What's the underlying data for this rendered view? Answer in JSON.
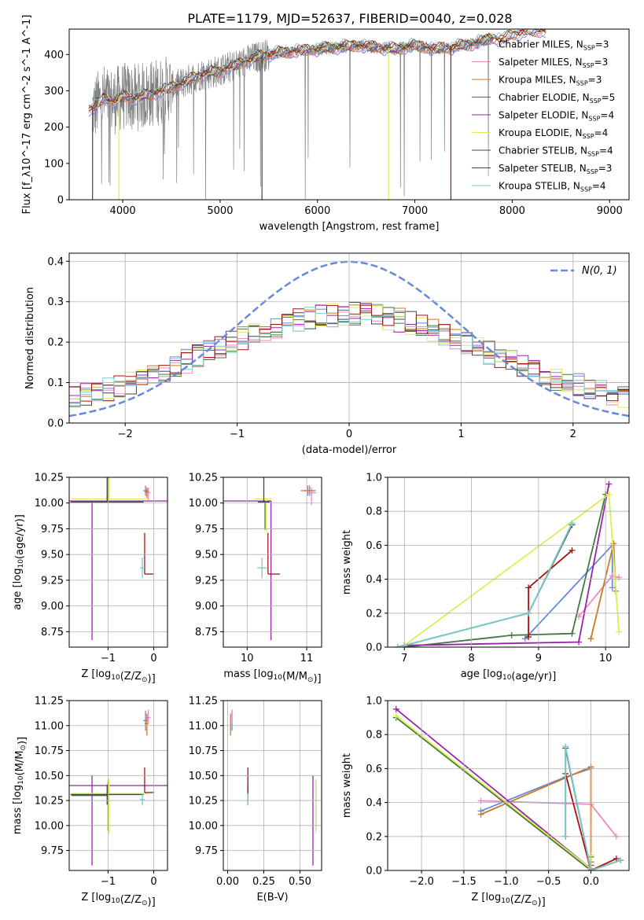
{
  "figure_title": "PLATE=1179, MJD=52637, FIBERID=0040, z=0.028",
  "colors": {
    "series": [
      "#6688dd",
      "#ee88cc",
      "#cc7722",
      "#447744",
      "#9922aa",
      "#ddee55",
      "#444444",
      "#aa1111",
      "#77cccc"
    ],
    "data_spectrum": "#808080",
    "normal_curve": "#6688dd",
    "grid": "#b0b0b0"
  },
  "chart_data": [
    {
      "id": "spectrum",
      "type": "line",
      "xlabel": "wavelength [Angstrom, rest frame]",
      "ylabel": "Flux [f_λ10^-17 erg cm^-2 s^-1 A^-1]",
      "xlim": [
        3450,
        9200
      ],
      "ylim": [
        0,
        470
      ],
      "xticks": [
        4000,
        5000,
        6000,
        7000,
        8000,
        9000
      ],
      "yticks": [
        0,
        100,
        200,
        300,
        400
      ],
      "grid": false,
      "legend_position": "top-right",
      "legend": [
        {
          "main": "Chabrier MILES, N",
          "sub": "SSP",
          "tail": "=3"
        },
        {
          "main": "Salpeter MILES, N",
          "sub": "SSP",
          "tail": "=3"
        },
        {
          "main": "Kroupa MILES, N",
          "sub": "SSP",
          "tail": "=3"
        },
        {
          "main": "Chabrier ELODIE, N",
          "sub": "SSP",
          "tail": "=5"
        },
        {
          "main": "Salpeter ELODIE, N",
          "sub": "SSP",
          "tail": "=4"
        },
        {
          "main": "Kroupa ELODIE, N",
          "sub": "SSP",
          "tail": "=4"
        },
        {
          "main": "Chabrier STELIB, N",
          "sub": "SSP",
          "tail": "=4"
        },
        {
          "main": "Salpeter STELIB, N",
          "sub": "SSP",
          "tail": "=3"
        },
        {
          "main": "Kroupa STELIB, N",
          "sub": "SSP",
          "tail": "=4"
        }
      ],
      "continuum_points": [
        [
          3700,
          250
        ],
        [
          3800,
          280
        ],
        [
          3900,
          270
        ],
        [
          4000,
          285
        ],
        [
          4100,
          280
        ],
        [
          4200,
          285
        ],
        [
          4400,
          300
        ],
        [
          4600,
          320
        ],
        [
          4800,
          345
        ],
        [
          5000,
          355
        ],
        [
          5200,
          375
        ],
        [
          5400,
          395
        ],
        [
          5600,
          405
        ],
        [
          5800,
          410
        ],
        [
          6000,
          415
        ],
        [
          6200,
          420
        ],
        [
          6400,
          425
        ],
        [
          6600,
          420
        ],
        [
          6800,
          415
        ],
        [
          7000,
          425
        ],
        [
          7200,
          415
        ],
        [
          7400,
          420
        ],
        [
          7600,
          430
        ],
        [
          7800,
          445
        ],
        [
          7900,
          440
        ],
        [
          8000,
          455
        ],
        [
          8200,
          465
        ]
      ],
      "drop_lines": [
        {
          "series": 6,
          "x": 3690
        },
        {
          "series": 5,
          "x": 3960
        },
        {
          "series": 6,
          "x": 5430
        },
        {
          "series": 5,
          "x": 6730
        },
        {
          "series": 7,
          "x": 7370
        }
      ]
    },
    {
      "id": "residuals",
      "type": "histogram",
      "xlabel": "(data-model)/error",
      "ylabel": "Normed distribution",
      "xlim": [
        -2.5,
        2.5
      ],
      "ylim": [
        0,
        0.42
      ],
      "xticks": [
        -2,
        -1,
        0,
        1,
        2
      ],
      "yticks": [
        0.0,
        0.1,
        0.2,
        0.3,
        0.4
      ],
      "grid": true,
      "bin_width": 0.1,
      "curve": {
        "type": "normal",
        "mean": 0,
        "sigma": 1,
        "label": "N(0, 1)"
      },
      "legend_position": "top-right"
    },
    {
      "id": "age_vs_Z",
      "type": "errorbar",
      "xlabel": "Z [log10(Z/Z⊙)]",
      "ylabel": "age  [log10(age/yr)]",
      "xlim": [
        -1.85,
        0.3
      ],
      "ylim": [
        8.6,
        10.25
      ],
      "xticks": [
        -1,
        0
      ],
      "yticks": [
        8.75,
        9.0,
        9.25,
        9.5,
        9.75,
        10.0,
        10.25
      ],
      "grid": true,
      "points": [
        {
          "s": 0,
          "x": -0.18,
          "y": 10.12,
          "xe": [
            0.05,
            0.05
          ],
          "ye": [
            0.05,
            0.05
          ]
        },
        {
          "s": 1,
          "x": -0.12,
          "y": 10.1,
          "xe": [
            0.06,
            0.05
          ],
          "ye": [
            0.07,
            0.05
          ]
        },
        {
          "s": 2,
          "x": -0.15,
          "y": 10.11,
          "xe": [
            0.05,
            0.04
          ],
          "ye": [
            0.06,
            0.04
          ]
        },
        {
          "s": 3,
          "x": -1.0,
          "y": 10.02,
          "xe": [
            0.8,
            0.0
          ],
          "ye": [
            0.0,
            0.28
          ]
        },
        {
          "s": 4,
          "x": -1.35,
          "y": 10.02,
          "xe": [
            0.5,
            1.65
          ],
          "ye": [
            1.35,
            0.0
          ]
        },
        {
          "s": 5,
          "x": -0.98,
          "y": 10.04,
          "xe": [
            0.82,
            0.85
          ],
          "ye": [
            0.0,
            0.32
          ]
        },
        {
          "s": 6,
          "x": -1.02,
          "y": 10.01,
          "xe": [
            0.8,
            0.8
          ],
          "ye": [
            0.0,
            0.25
          ]
        },
        {
          "s": 7,
          "x": -0.2,
          "y": 9.31,
          "xe": [
            0.0,
            0.2
          ],
          "ye": [
            0.0,
            0.4
          ]
        },
        {
          "s": 8,
          "x": -0.25,
          "y": 9.37,
          "xe": [
            0.05,
            0.05
          ],
          "ye": [
            0.1,
            0.1
          ]
        }
      ]
    },
    {
      "id": "age_vs_mass",
      "type": "errorbar",
      "xlabel": "mass [log10(M/M⊙)]",
      "ylabel": "",
      "xlim": [
        9.6,
        11.25
      ],
      "ylim": [
        8.6,
        10.25
      ],
      "xticks": [
        10,
        11
      ],
      "yticks": [
        8.75,
        9.0,
        9.25,
        9.5,
        9.75,
        10.0,
        10.25
      ],
      "grid": true,
      "points": [
        {
          "s": 0,
          "x": 11.05,
          "y": 10.12,
          "xe": [
            0.1,
            0.1
          ],
          "ye": [
            0.05,
            0.05
          ]
        },
        {
          "s": 1,
          "x": 11.08,
          "y": 10.1,
          "xe": [
            0.05,
            0.08
          ],
          "ye": [
            0.12,
            0.05
          ]
        },
        {
          "s": 2,
          "x": 11.02,
          "y": 10.12,
          "xe": [
            0.12,
            0.1
          ],
          "ye": [
            0.05,
            0.05
          ]
        },
        {
          "s": 3,
          "x": 10.3,
          "y": 10.02,
          "xe": [
            0.0,
            0.1
          ],
          "ye": [
            0.28,
            0.0
          ]
        },
        {
          "s": 4,
          "x": 10.4,
          "y": 10.02,
          "xe": [
            0.8,
            0.0
          ],
          "ye": [
            1.35,
            0.0
          ]
        },
        {
          "s": 5,
          "x": 10.32,
          "y": 10.04,
          "xe": [
            0.2,
            0.1
          ],
          "ye": [
            0.32,
            0.0
          ]
        },
        {
          "s": 6,
          "x": 10.28,
          "y": 10.01,
          "xe": [
            0.1,
            0.1
          ],
          "ye": [
            0.0,
            0.25
          ]
        },
        {
          "s": 7,
          "x": 10.35,
          "y": 9.31,
          "xe": [
            0.0,
            0.2
          ],
          "ye": [
            0.0,
            0.4
          ]
        },
        {
          "s": 8,
          "x": 10.25,
          "y": 9.37,
          "xe": [
            0.08,
            0.08
          ],
          "ye": [
            0.1,
            0.1
          ]
        }
      ]
    },
    {
      "id": "weight_vs_age",
      "type": "line",
      "xlabel": "age  [log10(age/yr)]",
      "ylabel": "mass weight",
      "xlim": [
        6.75,
        10.35
      ],
      "ylim": [
        0,
        1.0
      ],
      "xticks": [
        7,
        8,
        9,
        10
      ],
      "yticks": [
        0.0,
        0.2,
        0.4,
        0.6,
        0.8,
        1.0
      ],
      "grid": true,
      "series": [
        {
          "s": 0,
          "x": [
            8.8,
            10.1,
            10.1
          ],
          "y": [
            0.05,
            0.6,
            0.35
          ]
        },
        {
          "s": 1,
          "x": 9.6,
          "xs": [
            9.6,
            10.1,
            10.2
          ],
          "y": [
            0.18,
            0.42,
            0.41
          ]
        },
        {
          "s": 2,
          "x": [
            9.78,
            10.12,
            10.15
          ],
          "y": [
            0.05,
            0.61,
            0.33
          ]
        },
        {
          "s": 3,
          "x": [
            7.0,
            8.6,
            9.5,
            10.0
          ],
          "y": [
            0.0,
            0.07,
            0.08,
            0.9
          ]
        },
        {
          "s": 4,
          "x": [
            7.0,
            9.6,
            10.05
          ],
          "y": [
            0.01,
            0.03,
            0.96
          ]
        },
        {
          "s": 5,
          "x": [
            7.0,
            10.05,
            10.2
          ],
          "y": [
            0.01,
            0.9,
            0.09
          ]
        },
        {
          "s": 6,
          "x": [
            6.9,
            8.85,
            9.5
          ],
          "y": [
            0.0,
            0.2,
            0.72
          ]
        },
        {
          "s": 7,
          "x": [
            8.85,
            8.85,
            9.5
          ],
          "y": [
            0.06,
            0.35,
            0.57
          ]
        },
        {
          "s": 8,
          "x": [
            6.9,
            8.85,
            9.5
          ],
          "y": [
            0.0,
            0.2,
            0.73
          ]
        }
      ]
    },
    {
      "id": "mass_vs_Z",
      "type": "errorbar",
      "xlabel": "Z [log10(Z/Z⊙)]",
      "ylabel": "mass [log10(M/M⊙)]",
      "xlim": [
        -1.85,
        0.3
      ],
      "ylim": [
        9.55,
        11.25
      ],
      "xticks": [
        -1,
        0
      ],
      "yticks": [
        9.75,
        10.0,
        10.25,
        10.5,
        10.75,
        11.0,
        11.25
      ],
      "grid": true,
      "points": [
        {
          "s": 0,
          "x": -0.18,
          "y": 11.05,
          "xe": [
            0.05,
            0.05
          ],
          "ye": [
            0.1,
            0.1
          ]
        },
        {
          "s": 1,
          "x": -0.12,
          "y": 11.08,
          "xe": [
            0.06,
            0.05
          ],
          "ye": [
            0.05,
            0.08
          ]
        },
        {
          "s": 2,
          "x": -0.15,
          "y": 11.02,
          "xe": [
            0.05,
            0.04
          ],
          "ye": [
            0.12,
            0.1
          ]
        },
        {
          "s": 3,
          "x": -1.0,
          "y": 10.3,
          "xe": [
            0.8,
            0.0
          ],
          "ye": [
            0.35,
            0.15
          ]
        },
        {
          "s": 4,
          "x": -1.35,
          "y": 10.4,
          "xe": [
            0.5,
            1.65
          ],
          "ye": [
            0.8,
            0.1
          ]
        },
        {
          "s": 5,
          "x": -0.98,
          "y": 10.32,
          "xe": [
            0.82,
            0.85
          ],
          "ye": [
            0.4,
            0.15
          ]
        },
        {
          "s": 6,
          "x": -1.02,
          "y": 10.31,
          "xe": [
            0.8,
            0.8
          ],
          "ye": [
            0.1,
            0.1
          ]
        },
        {
          "s": 7,
          "x": -0.2,
          "y": 10.33,
          "xe": [
            0.0,
            0.2
          ],
          "ye": [
            0.0,
            0.25
          ]
        },
        {
          "s": 8,
          "x": -0.25,
          "y": 10.26,
          "xe": [
            0.05,
            0.05
          ],
          "ye": [
            0.06,
            0.06
          ]
        }
      ]
    },
    {
      "id": "mass_vs_ebv",
      "type": "errorbar",
      "xlabel": "E(B-V)",
      "ylabel": "",
      "xlim": [
        -0.03,
        0.65
      ],
      "ylim": [
        9.55,
        11.25
      ],
      "xticks": [
        0.0,
        0.25,
        0.5
      ],
      "xtick_labels": [
        "0.00",
        "0.25",
        "0.50"
      ],
      "yticks": [
        9.75,
        10.0,
        10.25,
        10.5,
        10.75,
        11.0,
        11.25
      ],
      "grid": true,
      "points": [
        {
          "s": 0,
          "x": 0.03,
          "y": 11.05,
          "xe": [
            0,
            0
          ],
          "ye": [
            0.1,
            0.1
          ]
        },
        {
          "s": 1,
          "x": 0.03,
          "y": 11.08,
          "xe": [
            0,
            0
          ],
          "ye": [
            0.05,
            0.08
          ]
        },
        {
          "s": 2,
          "x": 0.02,
          "y": 11.02,
          "xe": [
            0,
            0
          ],
          "ye": [
            0.12,
            0.1
          ]
        },
        {
          "s": 3,
          "x": 0.61,
          "y": 10.3,
          "xe": [
            0,
            0
          ],
          "ye": [
            0.35,
            0.15
          ]
        },
        {
          "s": 4,
          "x": 0.59,
          "y": 10.4,
          "xe": [
            0,
            0
          ],
          "ye": [
            0.8,
            0.1
          ]
        },
        {
          "s": 5,
          "x": 0.61,
          "y": 10.32,
          "xe": [
            0,
            0
          ],
          "ye": [
            0.4,
            0.15
          ]
        },
        {
          "s": 6,
          "x": 0.14,
          "y": 10.31,
          "xe": [
            0,
            0
          ],
          "ye": [
            0.1,
            0.1
          ]
        },
        {
          "s": 7,
          "x": 0.14,
          "y": 10.33,
          "xe": [
            0,
            0
          ],
          "ye": [
            0.0,
            0.25
          ]
        },
        {
          "s": 8,
          "x": 0.14,
          "y": 10.26,
          "xe": [
            0,
            0
          ],
          "ye": [
            0.06,
            0.06
          ]
        }
      ]
    },
    {
      "id": "weight_vs_Z",
      "type": "line",
      "xlabel": "Z [log10(Z/Z⊙)]",
      "ylabel": "mass weight",
      "xlim": [
        -2.4,
        0.45
      ],
      "ylim": [
        0,
        1.0
      ],
      "xticks": [
        -2.0,
        -1.5,
        -1.0,
        -0.5,
        0.0
      ],
      "xtick_labels": [
        "−2.0",
        "−1.5",
        "−1.0",
        "−0.5",
        "0.0"
      ],
      "yticks": [
        0.0,
        0.2,
        0.4,
        0.6,
        0.8,
        1.0
      ],
      "grid": true,
      "series": [
        {
          "s": 0,
          "x": [
            -1.3,
            -0.3,
            0.0
          ],
          "y": [
            0.35,
            0.55,
            0.6
          ]
        },
        {
          "s": 1,
          "x": [
            -1.3,
            0.0,
            0.3
          ],
          "y": [
            0.41,
            0.39,
            0.2
          ]
        },
        {
          "s": 2,
          "x": [
            -1.3,
            0.0,
            0.0
          ],
          "y": [
            0.33,
            0.61,
            0.05
          ]
        },
        {
          "s": 3,
          "x": [
            -2.3,
            0.0,
            0.0
          ],
          "y": [
            0.9,
            0.0,
            0.08
          ]
        },
        {
          "s": 4,
          "x": [
            -2.3,
            0.0,
            0.0
          ],
          "y": [
            0.95,
            0.01,
            0.03
          ]
        },
        {
          "s": 5,
          "x": [
            -2.3,
            0.0,
            0.0
          ],
          "y": [
            0.91,
            0.01,
            0.09
          ]
        },
        {
          "s": 6,
          "x": [
            -0.3,
            -0.3,
            0.0,
            0.35
          ],
          "y": [
            0.2,
            0.72,
            0.0,
            0.06
          ]
        },
        {
          "s": 7,
          "x": [
            -0.3,
            0.0,
            0.3
          ],
          "y": [
            0.57,
            0.0,
            0.07
          ]
        },
        {
          "s": 8,
          "x": [
            -0.3,
            -0.3,
            0.0,
            0.35
          ],
          "y": [
            0.2,
            0.73,
            0.0,
            0.06
          ]
        }
      ]
    }
  ]
}
